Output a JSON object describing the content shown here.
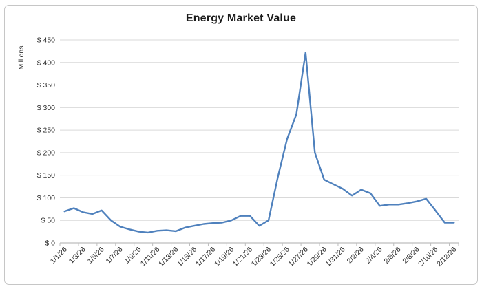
{
  "style": {
    "line_color": "#4F81BD",
    "gridline_color": "#D9D9D9",
    "axis_line_color": "#BDBDBD",
    "tick_label_color": "#2e2e2e",
    "title_color": "#1a1a1a",
    "frame_border_color": "#c6c6c6",
    "background": "#FFFFFF"
  },
  "chart_data": {
    "type": "line",
    "title": "Energy Market Value",
    "xlabel": "",
    "ylabel": "Millions",
    "ylim": [
      0,
      450
    ],
    "y_tick_step": 50,
    "y_tick_prefix": "$ ",
    "y_tick_labels": [
      "$ 0",
      "$ 50",
      "$ 100",
      "$ 150",
      "$ 200",
      "$ 250",
      "$ 300",
      "$ 350",
      "$ 400",
      "$ 450"
    ],
    "grid": "horizontal-only",
    "legend_position": "none",
    "x": [
      "1/1/26",
      "1/2/26",
      "1/3/26",
      "1/4/26",
      "1/5/26",
      "1/6/26",
      "1/7/26",
      "1/8/26",
      "1/9/26",
      "1/10/26",
      "1/11/26",
      "1/12/26",
      "1/13/26",
      "1/14/26",
      "1/15/26",
      "1/16/26",
      "1/17/26",
      "1/18/26",
      "1/19/26",
      "1/20/26",
      "1/21/26",
      "1/22/26",
      "1/23/26",
      "1/24/26",
      "1/25/26",
      "1/26/26",
      "1/27/26",
      "1/28/26",
      "1/29/26",
      "1/30/26",
      "1/31/26",
      "2/1/26",
      "2/2/26",
      "2/3/26",
      "2/4/26",
      "2/5/26",
      "2/6/26",
      "2/7/26",
      "2/8/26",
      "2/9/26",
      "2/10/26",
      "2/11/26",
      "2/12/26"
    ],
    "x_tick_labels": [
      "1/1/26",
      "1/3/26",
      "1/5/26",
      "1/7/26",
      "1/9/26",
      "1/11/26",
      "1/13/26",
      "1/15/26",
      "1/17/26",
      "1/19/26",
      "1/21/26",
      "1/23/26",
      "1/25/26",
      "1/27/26",
      "1/29/26",
      "1/31/26",
      "2/2/26",
      "2/4/26",
      "2/6/26",
      "2/8/26",
      "2/10/26",
      "2/12/26"
    ],
    "series": [
      {
        "name": "Energy Market Value",
        "color": "#4F81BD",
        "values": [
          70,
          77,
          68,
          64,
          72,
          50,
          36,
          30,
          25,
          23,
          27,
          28,
          26,
          34,
          38,
          42,
          44,
          45,
          50,
          60,
          60,
          38,
          50,
          145,
          230,
          285,
          422,
          200,
          140,
          130,
          120,
          105,
          118,
          110,
          82,
          85,
          85,
          88,
          92,
          98,
          72,
          45,
          45
        ]
      }
    ]
  }
}
